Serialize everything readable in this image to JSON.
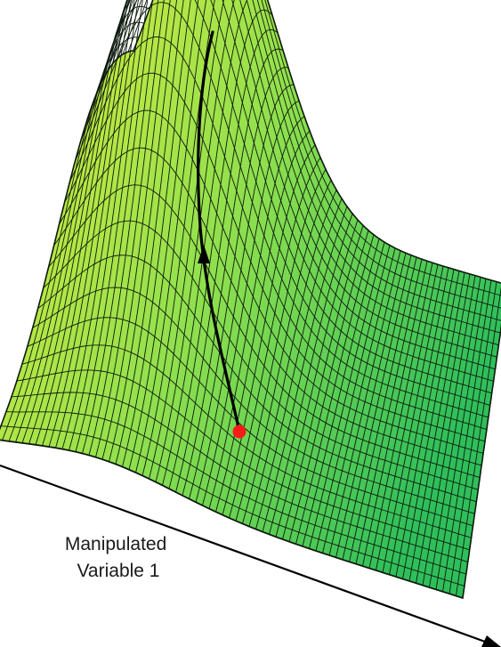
{
  "axis_label": {
    "line1": "Manipulated",
    "line2": "Variable 1"
  },
  "colors": {
    "surface_light": "#e9ef3a",
    "surface_mid": "#8fe04e",
    "surface_dark": "#2fbf5a",
    "mesh_line": "#0d1a0d",
    "trajectory": "#000000",
    "start_point": "#ff1a1a",
    "background": "#ffffff"
  },
  "elements": {
    "surface": "response-surface",
    "trajectory": "ascent-trajectory-arrow",
    "start_point": "red-start-point",
    "axis": "manipulated-variable-axis-arrow"
  }
}
